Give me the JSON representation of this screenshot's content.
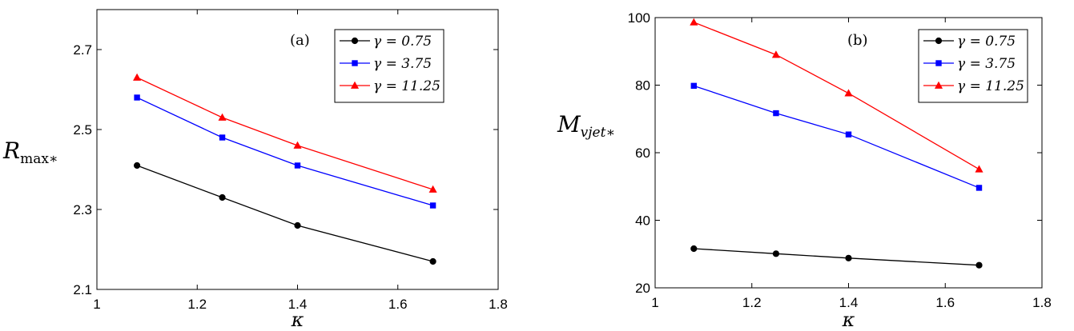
{
  "chart_data": [
    {
      "type": "line",
      "panel_label": "(a)",
      "xlabel": "κ",
      "ylabel": "R",
      "ylabel_sub": "max∗",
      "xlim": [
        1,
        1.8
      ],
      "ylim": [
        2.1,
        2.8
      ],
      "x_ticks": [
        1,
        1.2,
        1.4,
        1.6,
        1.8
      ],
      "x_tick_labels": [
        "1",
        "1.2",
        "1.4",
        "1.6",
        "1.8"
      ],
      "y_ticks": [
        2.1,
        2.3,
        2.5,
        2.7
      ],
      "y_tick_labels": [
        "2.1",
        "2.3",
        "2.5",
        "2.7"
      ],
      "grid": false,
      "legend_position": "top-right",
      "x": [
        1.08,
        1.25,
        1.4,
        1.67
      ],
      "series": [
        {
          "name": "γ = 0.75",
          "color": "#000000",
          "marker": "circle",
          "values": [
            2.41,
            2.33,
            2.26,
            2.17
          ]
        },
        {
          "name": "γ = 3.75",
          "color": "#0000ff",
          "marker": "square",
          "values": [
            2.58,
            2.48,
            2.41,
            2.31
          ]
        },
        {
          "name": "γ = 11.25",
          "color": "#ff0000",
          "marker": "triangle",
          "values": [
            2.63,
            2.53,
            2.46,
            2.35
          ]
        }
      ]
    },
    {
      "type": "line",
      "panel_label": "(b)",
      "xlabel": "κ",
      "ylabel": "M",
      "ylabel_sub": "vjet∗",
      "xlim": [
        1,
        1.8
      ],
      "ylim": [
        20,
        100
      ],
      "x_ticks": [
        1,
        1.2,
        1.4,
        1.6,
        1.8
      ],
      "x_tick_labels": [
        "1",
        "1.2",
        "1.4",
        "1.6",
        "1.8"
      ],
      "y_ticks": [
        20,
        40,
        60,
        80,
        100
      ],
      "y_tick_labels": [
        "20",
        "40",
        "60",
        "80",
        "100"
      ],
      "grid": false,
      "legend_position": "top-right",
      "x": [
        1.08,
        1.25,
        1.4,
        1.67
      ],
      "series": [
        {
          "name": "γ = 0.75",
          "color": "#000000",
          "marker": "circle",
          "values": [
            31.6,
            30.1,
            28.8,
            26.7
          ]
        },
        {
          "name": "γ = 3.75",
          "color": "#0000ff",
          "marker": "square",
          "values": [
            79.8,
            71.7,
            65.4,
            49.6
          ]
        },
        {
          "name": "γ = 11.25",
          "color": "#ff0000",
          "marker": "triangle",
          "values": [
            98.6,
            89.0,
            77.6,
            55.1
          ]
        }
      ]
    }
  ]
}
